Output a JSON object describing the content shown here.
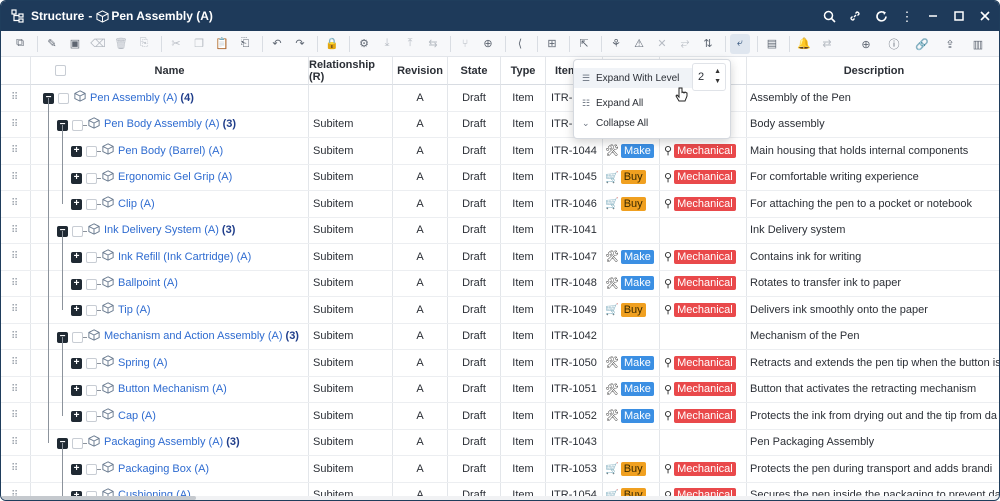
{
  "window": {
    "title_prefix": "Structure",
    "separator": "-",
    "title": "Pen Assembly (A)"
  },
  "columns": {
    "name": "Name",
    "relationship": "Relationship (R)",
    "revision": "Revision",
    "state": "State",
    "type": "Type",
    "item": "Item",
    "description": "Description"
  },
  "popup": {
    "expand_with_level": "Expand With Level",
    "expand_all": "Expand All",
    "collapse_all": "Collapse All",
    "level_value": "2"
  },
  "rows": [
    {
      "depth": 0,
      "toggle": "−",
      "name": "Pen Assembly (A)",
      "count": "(4)",
      "rel": "",
      "rev": "A",
      "state": "Draft",
      "type": "Item",
      "item": "ITR-",
      "make": "",
      "source": "",
      "dept": "",
      "desc": "Assembly of the Pen"
    },
    {
      "depth": 1,
      "toggle": "−",
      "name": "Pen Body Assembly (A)",
      "count": "(3)",
      "rel": "Subitem",
      "rev": "A",
      "state": "Draft",
      "type": "Item",
      "item": "ITR-",
      "make": "",
      "source": "",
      "dept": "",
      "desc": "Body assembly"
    },
    {
      "depth": 2,
      "toggle": "+",
      "name": "Pen Body (Barrel) (A)",
      "count": "",
      "rel": "Subitem",
      "rev": "A",
      "state": "Draft",
      "type": "Item",
      "item": "ITR-1044",
      "make": "Make",
      "source": "make",
      "dept": "Mechanical",
      "desc": "Main housing that holds internal components"
    },
    {
      "depth": 2,
      "toggle": "+",
      "name": "Ergonomic Gel Grip (A)",
      "count": "",
      "rel": "Subitem",
      "rev": "A",
      "state": "Draft",
      "type": "Item",
      "item": "ITR-1045",
      "make": "Buy",
      "source": "buy",
      "dept": "Mechanical",
      "desc": "For comfortable writing experience"
    },
    {
      "depth": 2,
      "toggle": "+",
      "name": "Clip (A)",
      "count": "",
      "rel": "Subitem",
      "rev": "A",
      "state": "Draft",
      "type": "Item",
      "item": "ITR-1046",
      "make": "Buy",
      "source": "buy",
      "dept": "Mechanical",
      "desc": "For attaching the pen to a pocket or notebook"
    },
    {
      "depth": 1,
      "toggle": "−",
      "name": "Ink Delivery System (A)",
      "count": "(3)",
      "rel": "Subitem",
      "rev": "A",
      "state": "Draft",
      "type": "Item",
      "item": "ITR-1041",
      "make": "",
      "source": "",
      "dept": "",
      "desc": "Ink Delivery system"
    },
    {
      "depth": 2,
      "toggle": "+",
      "name": "Ink Refill (Ink Cartridge) (A)",
      "count": "",
      "rel": "Subitem",
      "rev": "A",
      "state": "Draft",
      "type": "Item",
      "item": "ITR-1047",
      "make": "Make",
      "source": "make",
      "dept": "Mechanical",
      "desc": "Contains ink for writing"
    },
    {
      "depth": 2,
      "toggle": "+",
      "name": "Ballpoint (A)",
      "count": "",
      "rel": "Subitem",
      "rev": "A",
      "state": "Draft",
      "type": "Item",
      "item": "ITR-1048",
      "make": "Make",
      "source": "make",
      "dept": "Mechanical",
      "desc": "Rotates to transfer ink to paper"
    },
    {
      "depth": 2,
      "toggle": "+",
      "name": "Tip (A)",
      "count": "",
      "rel": "Subitem",
      "rev": "A",
      "state": "Draft",
      "type": "Item",
      "item": "ITR-1049",
      "make": "Buy",
      "source": "buy",
      "dept": "Mechanical",
      "desc": "Delivers ink smoothly onto the paper"
    },
    {
      "depth": 1,
      "toggle": "−",
      "name": "Mechanism and Action Assembly (A)",
      "count": "(3)",
      "rel": "Subitem",
      "rev": "A",
      "state": "Draft",
      "type": "Item",
      "item": "ITR-1042",
      "make": "",
      "source": "",
      "dept": "",
      "desc": "Mechanism of the Pen"
    },
    {
      "depth": 2,
      "toggle": "+",
      "name": "Spring (A)",
      "count": "",
      "rel": "Subitem",
      "rev": "A",
      "state": "Draft",
      "type": "Item",
      "item": "ITR-1050",
      "make": "Make",
      "source": "make",
      "dept": "Mechanical",
      "desc": "Retracts and extends the pen tip when the button is"
    },
    {
      "depth": 2,
      "toggle": "+",
      "name": "Button Mechanism (A)",
      "count": "",
      "rel": "Subitem",
      "rev": "A",
      "state": "Draft",
      "type": "Item",
      "item": "ITR-1051",
      "make": "Make",
      "source": "make",
      "dept": "Mechanical",
      "desc": "Button that activates the retracting mechanism"
    },
    {
      "depth": 2,
      "toggle": "+",
      "name": "Cap (A)",
      "count": "",
      "rel": "Subitem",
      "rev": "A",
      "state": "Draft",
      "type": "Item",
      "item": "ITR-1052",
      "make": "Make",
      "source": "make",
      "dept": "Mechanical",
      "desc": "Protects the ink from drying out and the tip from da"
    },
    {
      "depth": 1,
      "toggle": "−",
      "name": "Packaging Assembly (A)",
      "count": "(3)",
      "rel": "Subitem",
      "rev": "A",
      "state": "Draft",
      "type": "Item",
      "item": "ITR-1043",
      "make": "",
      "source": "",
      "dept": "",
      "desc": "Pen Packaging Assembly"
    },
    {
      "depth": 2,
      "toggle": "+",
      "name": "Packaging Box (A)",
      "count": "",
      "rel": "Subitem",
      "rev": "A",
      "state": "Draft",
      "type": "Item",
      "item": "ITR-1053",
      "make": "Buy",
      "source": "buy",
      "dept": "Mechanical",
      "desc": "Protects the pen during transport and adds brandi"
    },
    {
      "depth": 2,
      "toggle": "+",
      "name": "Cushioning (A)",
      "count": "",
      "rel": "Subitem",
      "rev": "A",
      "state": "Draft",
      "type": "Item",
      "item": "ITR-1054",
      "make": "Buy",
      "source": "buy",
      "dept": "Mechanical",
      "desc": "Secures the pen inside the packaging to prevent da"
    }
  ],
  "colors": {
    "titlebar": "#1e3a5a",
    "link": "#2e6bd0",
    "make": "#3b8fe3",
    "buy": "#f0a020",
    "mechanical": "#e9494b"
  }
}
